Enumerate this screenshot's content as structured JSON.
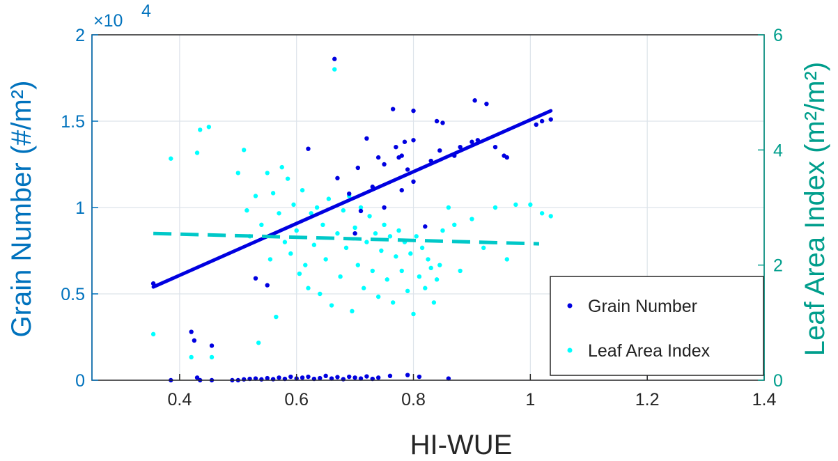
{
  "chart_data": {
    "type": "scatter",
    "title": "",
    "xlabel": "HI-WUE",
    "ylabel_left": "Grain Number (#/m²)",
    "ylabel_right": "Leaf Area Index (m²/m²)",
    "xlim": [
      0.25,
      1.4
    ],
    "ylim_left": [
      0,
      20000
    ],
    "ylim_right": [
      0,
      6
    ],
    "x_ticks": [
      "0.4",
      "0.6",
      "0.8",
      "1",
      "1.2",
      "1.4"
    ],
    "y_left_ticks": [
      "0",
      "0.5",
      "1",
      "1.5",
      "2"
    ],
    "y_left_exponent": {
      "base": "×10",
      "power": "4"
    },
    "y_right_ticks": [
      "0",
      "2",
      "4",
      "6"
    ],
    "grid": true,
    "legend_position": "bottom-right",
    "colors": {
      "grain": "#0000e0",
      "lai": "#00ffff",
      "lai_fit": "#00c8c8",
      "left_axis": "#0072bd",
      "right_axis": "#009e8c",
      "x_axis": "#262626"
    },
    "series": [
      {
        "name": "Grain Number",
        "axis": "left",
        "marker": "dot",
        "points": [
          [
            0.355,
            5600
          ],
          [
            0.385,
            0
          ],
          [
            0.42,
            2800
          ],
          [
            0.425,
            2300
          ],
          [
            0.43,
            150
          ],
          [
            0.435,
            0
          ],
          [
            0.455,
            2000
          ],
          [
            0.455,
            0
          ],
          [
            0.49,
            0
          ],
          [
            0.5,
            0
          ],
          [
            0.51,
            50
          ],
          [
            0.52,
            80
          ],
          [
            0.53,
            5900
          ],
          [
            0.53,
            100
          ],
          [
            0.54,
            50
          ],
          [
            0.55,
            5500
          ],
          [
            0.55,
            120
          ],
          [
            0.56,
            60
          ],
          [
            0.57,
            150
          ],
          [
            0.58,
            80
          ],
          [
            0.59,
            200
          ],
          [
            0.6,
            100
          ],
          [
            0.61,
            150
          ],
          [
            0.62,
            13400
          ],
          [
            0.62,
            200
          ],
          [
            0.63,
            80
          ],
          [
            0.64,
            120
          ],
          [
            0.65,
            250
          ],
          [
            0.66,
            100
          ],
          [
            0.665,
            18600
          ],
          [
            0.67,
            11700
          ],
          [
            0.67,
            180
          ],
          [
            0.68,
            60
          ],
          [
            0.69,
            10800
          ],
          [
            0.69,
            200
          ],
          [
            0.7,
            8500
          ],
          [
            0.7,
            150
          ],
          [
            0.705,
            12300
          ],
          [
            0.71,
            9800
          ],
          [
            0.71,
            100
          ],
          [
            0.72,
            14000
          ],
          [
            0.72,
            220
          ],
          [
            0.73,
            11200
          ],
          [
            0.73,
            80
          ],
          [
            0.74,
            12900
          ],
          [
            0.74,
            150
          ],
          [
            0.75,
            12500
          ],
          [
            0.75,
            10000
          ],
          [
            0.76,
            250
          ],
          [
            0.765,
            15700
          ],
          [
            0.77,
            13500
          ],
          [
            0.775,
            12900
          ],
          [
            0.78,
            13000
          ],
          [
            0.78,
            11000
          ],
          [
            0.785,
            13800
          ],
          [
            0.79,
            12200
          ],
          [
            0.79,
            300
          ],
          [
            0.8,
            15600
          ],
          [
            0.8,
            13900
          ],
          [
            0.8,
            11500
          ],
          [
            0.81,
            200
          ],
          [
            0.82,
            8900
          ],
          [
            0.83,
            12700
          ],
          [
            0.84,
            15000
          ],
          [
            0.845,
            13300
          ],
          [
            0.85,
            14900
          ],
          [
            0.86,
            100
          ],
          [
            0.87,
            13000
          ],
          [
            0.88,
            13500
          ],
          [
            0.9,
            13800
          ],
          [
            0.905,
            16200
          ],
          [
            0.91,
            13900
          ],
          [
            0.925,
            16000
          ],
          [
            0.94,
            13500
          ],
          [
            0.955,
            13000
          ],
          [
            0.96,
            12900
          ],
          [
            1.01,
            14800
          ],
          [
            1.02,
            15000
          ],
          [
            1.035,
            15100
          ]
        ]
      },
      {
        "name": "Leaf Area Index",
        "axis": "right",
        "marker": "dot",
        "points": [
          [
            0.355,
            0.8
          ],
          [
            0.385,
            3.85
          ],
          [
            0.42,
            0.4
          ],
          [
            0.43,
            3.95
          ],
          [
            0.435,
            4.35
          ],
          [
            0.45,
            4.4
          ],
          [
            0.455,
            0.4
          ],
          [
            0.5,
            3.6
          ],
          [
            0.51,
            4.0
          ],
          [
            0.515,
            2.95
          ],
          [
            0.52,
            2.5
          ],
          [
            0.53,
            3.2
          ],
          [
            0.535,
            0.65
          ],
          [
            0.54,
            2.7
          ],
          [
            0.55,
            3.6
          ],
          [
            0.555,
            2.1
          ],
          [
            0.56,
            3.25
          ],
          [
            0.565,
            1.1
          ],
          [
            0.57,
            2.9
          ],
          [
            0.575,
            3.7
          ],
          [
            0.58,
            2.4
          ],
          [
            0.585,
            3.5
          ],
          [
            0.59,
            2.2
          ],
          [
            0.595,
            3.05
          ],
          [
            0.6,
            2.6
          ],
          [
            0.605,
            1.85
          ],
          [
            0.61,
            3.3
          ],
          [
            0.615,
            2.0
          ],
          [
            0.62,
            1.6
          ],
          [
            0.625,
            2.9
          ],
          [
            0.63,
            2.35
          ],
          [
            0.635,
            3.0
          ],
          [
            0.64,
            1.5
          ],
          [
            0.645,
            2.7
          ],
          [
            0.65,
            2.1
          ],
          [
            0.655,
            3.15
          ],
          [
            0.66,
            1.3
          ],
          [
            0.665,
            5.4
          ],
          [
            0.67,
            2.55
          ],
          [
            0.675,
            1.8
          ],
          [
            0.68,
            2.95
          ],
          [
            0.685,
            2.3
          ],
          [
            0.69,
            3.2
          ],
          [
            0.695,
            1.2
          ],
          [
            0.7,
            2.65
          ],
          [
            0.705,
            2.0
          ],
          [
            0.71,
            3.0
          ],
          [
            0.715,
            1.6
          ],
          [
            0.72,
            2.4
          ],
          [
            0.725,
            2.85
          ],
          [
            0.73,
            1.9
          ],
          [
            0.735,
            2.55
          ],
          [
            0.74,
            1.45
          ],
          [
            0.745,
            2.25
          ],
          [
            0.75,
            2.7
          ],
          [
            0.755,
            1.75
          ],
          [
            0.76,
            2.5
          ],
          [
            0.765,
            1.35
          ],
          [
            0.77,
            2.15
          ],
          [
            0.775,
            2.6
          ],
          [
            0.78,
            1.9
          ],
          [
            0.785,
            2.4
          ],
          [
            0.79,
            1.55
          ],
          [
            0.795,
            2.2
          ],
          [
            0.8,
            1.15
          ],
          [
            0.805,
            2.5
          ],
          [
            0.81,
            1.8
          ],
          [
            0.815,
            2.3
          ],
          [
            0.82,
            1.6
          ],
          [
            0.825,
            2.1
          ],
          [
            0.83,
            1.95
          ],
          [
            0.835,
            1.35
          ],
          [
            0.84,
            1.75
          ],
          [
            0.845,
            2.0
          ],
          [
            0.85,
            2.6
          ],
          [
            0.86,
            3.0
          ],
          [
            0.87,
            2.7
          ],
          [
            0.88,
            1.9
          ],
          [
            0.9,
            2.8
          ],
          [
            0.92,
            2.3
          ],
          [
            0.94,
            3.0
          ],
          [
            0.96,
            2.1
          ],
          [
            0.975,
            3.05
          ],
          [
            1.0,
            3.05
          ],
          [
            1.02,
            2.9
          ],
          [
            1.035,
            2.85
          ]
        ]
      }
    ],
    "fit_lines": [
      {
        "series": "Grain Number",
        "style": "solid",
        "x": [
          0.355,
          1.035
        ],
        "y": [
          5400,
          15600
        ]
      },
      {
        "series": "Leaf Area Index",
        "style": "dashed",
        "x": [
          0.355,
          1.015
        ],
        "y": [
          2.55,
          2.37
        ]
      }
    ]
  }
}
